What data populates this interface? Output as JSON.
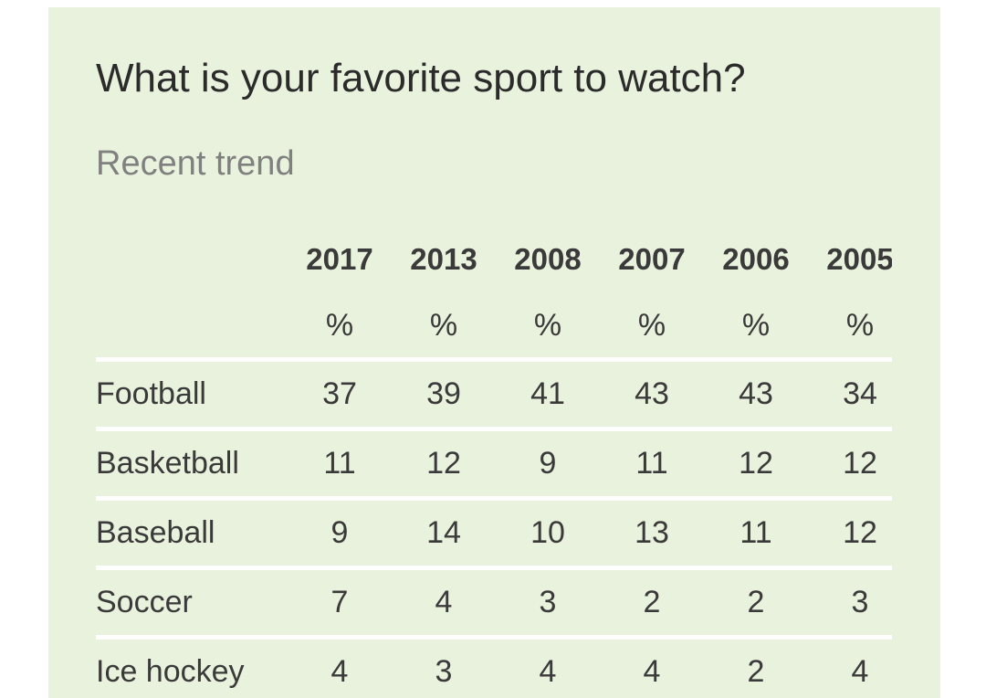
{
  "title": "What is your favorite sport to watch?",
  "subtitle": "Recent trend",
  "chart_data": {
    "type": "table",
    "title": "What is your favorite sport to watch?",
    "subtitle": "Recent trend",
    "columns": [
      "2017",
      "2013",
      "2008",
      "2007",
      "2006",
      "2005"
    ],
    "unit": "%",
    "rows": [
      {
        "label": "Football",
        "values": [
          37,
          39,
          41,
          43,
          43,
          34
        ]
      },
      {
        "label": "Basketball",
        "values": [
          11,
          12,
          9,
          11,
          12,
          12
        ]
      },
      {
        "label": "Baseball",
        "values": [
          9,
          14,
          10,
          13,
          11,
          12
        ]
      },
      {
        "label": "Soccer",
        "values": [
          7,
          4,
          3,
          2,
          2,
          3
        ]
      },
      {
        "label": "Ice hockey",
        "values": [
          4,
          3,
          4,
          4,
          2,
          4
        ]
      }
    ]
  },
  "colors": {
    "background": "#e9f2dc",
    "divider": "#ffffff",
    "text": "#3a3a3a",
    "subtitle": "#808080"
  }
}
